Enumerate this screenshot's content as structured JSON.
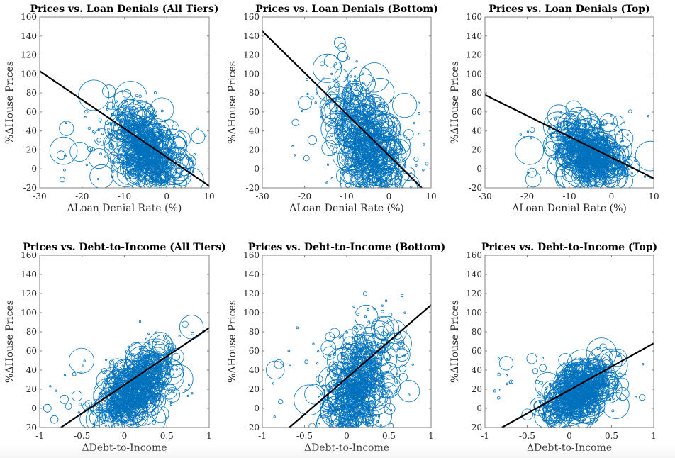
{
  "figure": {
    "accent_color": "#0072BD",
    "fit_line_color": "#000000",
    "axis_color": "#808080"
  },
  "chart_data": [
    {
      "type": "scatter",
      "title": "Prices vs. Loan Denials (All Tiers)",
      "xlabel": "ΔLoan Denial Rate (%)",
      "ylabel": "%ΔHouse Prices",
      "xlim": [
        -30,
        10
      ],
      "ylim": [
        -20,
        160
      ],
      "xticks": [
        -30,
        -20,
        -10,
        0,
        10
      ],
      "xtick_labels": [
        "-30",
        "-20",
        "-10",
        "0",
        "10"
      ],
      "yticks": [
        -20,
        0,
        20,
        40,
        60,
        80,
        100,
        120,
        140,
        160
      ],
      "ytick_labels": [
        "-20",
        "0",
        "20",
        "40",
        "60",
        "80",
        "100",
        "120",
        "140",
        "160"
      ],
      "grid": false,
      "marker": "open circle, size proportional to weight",
      "cloud": {
        "x_center": -5,
        "x_spread": 4,
        "y_center": 18,
        "y_spread": 20,
        "x_min": -25,
        "x_max": 10,
        "y_min": -16,
        "y_max": 110,
        "slope_cloud": -2.5
      },
      "fit_line": {
        "x": [
          -30,
          10
        ],
        "y": [
          103,
          -18
        ]
      }
    },
    {
      "type": "scatter",
      "title": "Prices vs. Loan Denials (Bottom)",
      "xlabel": "ΔLoan Denial Rate (%)",
      "ylabel": "%ΔHouse Prices",
      "xlim": [
        -30,
        10
      ],
      "ylim": [
        -20,
        160
      ],
      "xticks": [
        -30,
        -20,
        -10,
        0,
        10
      ],
      "xtick_labels": [
        "-30",
        "-20",
        "-10",
        "0",
        "10"
      ],
      "yticks": [
        -20,
        0,
        20,
        40,
        60,
        80,
        100,
        120,
        140,
        160
      ],
      "ytick_labels": [
        "-20",
        "0",
        "20",
        "40",
        "60",
        "80",
        "100",
        "120",
        "140",
        "160"
      ],
      "grid": false,
      "marker": "open circle, size proportional to weight",
      "cloud": {
        "x_center": -5,
        "x_spread": 4.5,
        "y_center": 22,
        "y_spread": 30,
        "x_min": -24,
        "x_max": 10,
        "y_min": -20,
        "y_max": 155,
        "slope_cloud": -4
      },
      "fit_line": {
        "x": [
          -30,
          7.8
        ],
        "y": [
          145,
          -20
        ]
      }
    },
    {
      "type": "scatter",
      "title": "Prices vs. Loan Denials (Top)",
      "xlabel": "ΔLoan Denial Rate (%)",
      "ylabel": "%ΔHouse Prices",
      "xlim": [
        -30,
        10
      ],
      "ylim": [
        -20,
        160
      ],
      "xticks": [
        -30,
        -20,
        -10,
        0,
        10
      ],
      "xtick_labels": [
        "-30",
        "-20",
        "-10",
        "0",
        "10"
      ],
      "yticks": [
        -20,
        0,
        20,
        40,
        60,
        80,
        100,
        120,
        140,
        160
      ],
      "ytick_labels": [
        "-20",
        "0",
        "20",
        "40",
        "60",
        "80",
        "100",
        "120",
        "140",
        "160"
      ],
      "grid": false,
      "marker": "open circle, size proportional to weight",
      "cloud": {
        "x_center": -5,
        "x_spread": 4,
        "y_center": 16,
        "y_spread": 15,
        "x_min": -25,
        "x_max": 10,
        "y_min": -14,
        "y_max": 105,
        "slope_cloud": -1.8
      },
      "fit_line": {
        "x": [
          -30,
          10
        ],
        "y": [
          78,
          -10
        ]
      }
    },
    {
      "type": "scatter",
      "title": "Prices vs. Debt-to-Income (All Tiers)",
      "xlabel": "ΔDebt-to-Income",
      "ylabel": "%ΔHouse Prices",
      "xlim": [
        -1,
        1
      ],
      "ylim": [
        -20,
        160
      ],
      "xticks": [
        -1,
        -0.5,
        0,
        0.5,
        1
      ],
      "xtick_labels": [
        "-1",
        "-0.5",
        "0",
        "0.5",
        "1"
      ],
      "yticks": [
        -20,
        0,
        20,
        40,
        60,
        80,
        100,
        120,
        140,
        160
      ],
      "ytick_labels": [
        "-20",
        "0",
        "20",
        "40",
        "60",
        "80",
        "100",
        "120",
        "140",
        "160"
      ],
      "grid": false,
      "marker": "open circle, size proportional to weight",
      "cloud": {
        "x_center": 0.12,
        "x_spread": 0.2,
        "y_center": 18,
        "y_spread": 18,
        "x_min": -0.92,
        "x_max": 0.88,
        "y_min": -18,
        "y_max": 110,
        "slope_cloud": 60
      },
      "fit_line": {
        "x": [
          -0.75,
          1
        ],
        "y": [
          -20,
          84
        ]
      }
    },
    {
      "type": "scatter",
      "title": "Prices vs. Debt-to-Income (Bottom)",
      "xlabel": "ΔDebt-to-Income",
      "ylabel": "%ΔHouse Prices",
      "xlim": [
        -1,
        1
      ],
      "ylim": [
        -20,
        160
      ],
      "xticks": [
        -1,
        -0.5,
        0,
        0.5,
        1
      ],
      "xtick_labels": [
        "-1",
        "-0.5",
        "0",
        "0.5",
        "1"
      ],
      "yticks": [
        -20,
        0,
        20,
        40,
        60,
        80,
        100,
        120,
        140,
        160
      ],
      "ytick_labels": [
        "-20",
        "0",
        "20",
        "40",
        "60",
        "80",
        "100",
        "120",
        "140",
        "160"
      ],
      "grid": false,
      "marker": "open circle, size proportional to weight",
      "cloud": {
        "x_center": 0.12,
        "x_spread": 0.2,
        "y_center": 22,
        "y_spread": 28,
        "x_min": -0.92,
        "x_max": 0.88,
        "y_min": -20,
        "y_max": 155,
        "slope_cloud": 80
      },
      "fit_line": {
        "x": [
          -0.68,
          1
        ],
        "y": [
          -20,
          108
        ]
      }
    },
    {
      "type": "scatter",
      "title": "Prices vs. Debt-to-Income (Top)",
      "xlabel": "ΔDebt-to-Income",
      "ylabel": "%ΔHouse Prices",
      "xlim": [
        -1,
        1
      ],
      "ylim": [
        -20,
        160
      ],
      "xticks": [
        -1,
        -0.5,
        0,
        0.5,
        1
      ],
      "xtick_labels": [
        "-1",
        "-0.5",
        "0",
        "0.5",
        "1"
      ],
      "yticks": [
        -20,
        0,
        20,
        40,
        60,
        80,
        100,
        120,
        140,
        160
      ],
      "ytick_labels": [
        "-20",
        "0",
        "20",
        "40",
        "60",
        "80",
        "100",
        "120",
        "140",
        "160"
      ],
      "grid": false,
      "marker": "open circle, size proportional to weight",
      "cloud": {
        "x_center": 0.1,
        "x_spread": 0.2,
        "y_center": 16,
        "y_spread": 15,
        "x_min": -0.92,
        "x_max": 0.88,
        "y_min": -14,
        "y_max": 105,
        "slope_cloud": 45
      },
      "fit_line": {
        "x": [
          -0.8,
          1
        ],
        "y": [
          -20,
          68
        ]
      }
    }
  ]
}
